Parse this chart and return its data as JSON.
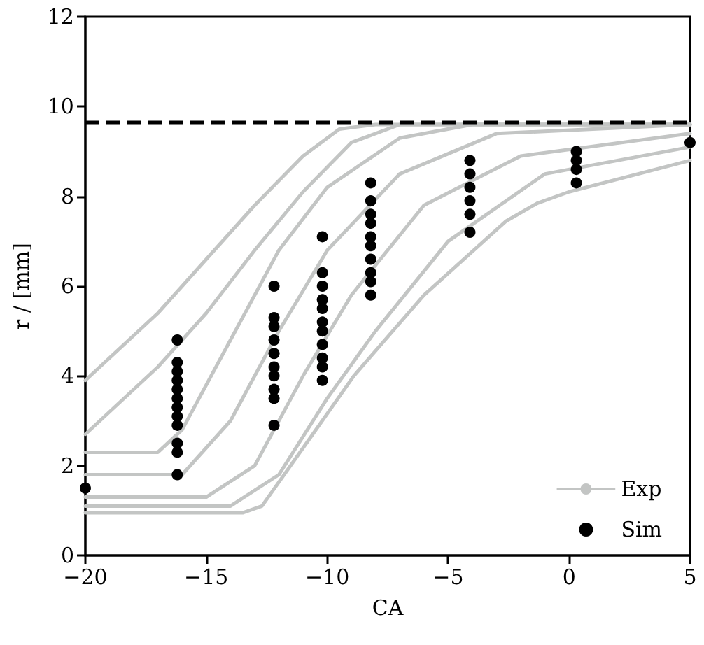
{
  "chart_data": {
    "type": "line",
    "xlabel": "CA",
    "ylabel": "r / [mm]",
    "xlim": [
      -20,
      5
    ],
    "ylim": [
      0,
      12
    ],
    "xticks": [
      {
        "value": -20,
        "label": "−20"
      },
      {
        "value": -15,
        "label": "−15"
      },
      {
        "value": -10,
        "label": "−10"
      },
      {
        "value": -5,
        "label": "−5"
      },
      0,
      5
    ],
    "yticks": [
      0,
      2,
      4,
      6,
      8,
      10,
      12
    ],
    "grid": false,
    "legend": "bottom right",
    "ref_lines": [
      {
        "axis": "y",
        "value": 9.65,
        "color": "#000000",
        "line_style": "dashed"
      }
    ],
    "series": [
      {
        "name": "Exp",
        "type": "line",
        "color": "#c3c5c4",
        "marker": "none",
        "x": [
          -20,
          -17,
          -15,
          -13,
          -11,
          -9.5,
          -8,
          5
        ],
        "values": [
          3.9,
          5.4,
          6.6,
          7.8,
          8.9,
          9.5,
          9.6,
          9.6
        ]
      },
      {
        "type": "line",
        "color": "#c3c5c4",
        "marker": "none",
        "x": [
          -20,
          -17,
          -15,
          -13,
          -11,
          -9,
          -7,
          5
        ],
        "values": [
          2.7,
          4.2,
          5.4,
          6.8,
          8.1,
          9.2,
          9.6,
          9.6
        ]
      },
      {
        "type": "line",
        "color": "#c3c5c4",
        "marker": "none",
        "x": [
          -20,
          -17,
          -16,
          -14,
          -12,
          -10,
          -7,
          -4,
          5
        ],
        "values": [
          2.3,
          2.3,
          2.8,
          4.8,
          6.8,
          8.2,
          9.3,
          9.6,
          9.6
        ]
      },
      {
        "type": "line",
        "color": "#c3c5c4",
        "marker": "none",
        "x": [
          -20,
          -16,
          -14,
          -12,
          -10,
          -7,
          -3,
          5
        ],
        "values": [
          1.8,
          1.8,
          3.0,
          5.0,
          6.8,
          8.5,
          9.4,
          9.6
        ]
      },
      {
        "type": "line",
        "color": "#c3c5c4",
        "marker": "none",
        "x": [
          -20,
          -15,
          -13,
          -11,
          -9,
          -6,
          -2,
          5
        ],
        "values": [
          1.3,
          1.3,
          2.0,
          4.0,
          5.8,
          7.8,
          8.9,
          9.4
        ]
      },
      {
        "type": "line",
        "color": "#c3c5c4",
        "marker": "none",
        "x": [
          -20,
          -14,
          -12,
          -10,
          -8,
          -5,
          -1,
          5
        ],
        "values": [
          1.1,
          1.1,
          1.8,
          3.5,
          5.0,
          7.0,
          8.5,
          9.1
        ]
      },
      {
        "type": "line",
        "color": "#c3c5c4",
        "marker": "none",
        "x": [
          -20,
          -13.5,
          -12.7,
          -10.6,
          -8.9,
          -6,
          -2.6,
          -1.3,
          0,
          5
        ],
        "values": [
          0.95,
          0.95,
          1.1,
          2.7,
          4.0,
          5.8,
          7.45,
          7.85,
          8.1,
          8.8
        ]
      },
      {
        "name": "Sim",
        "type": "scatter",
        "color": "#000000",
        "marker": "circle",
        "x": [
          -20,
          -16.2,
          -16.2,
          -16.2,
          -16.2,
          -16.2,
          -16.2,
          -16.2,
          -16.2,
          -16.2,
          -16.2,
          -16.2,
          -16.2,
          -12.2,
          -12.2,
          -12.2,
          -12.2,
          -12.2,
          -12.2,
          -12.2,
          -12.2,
          -12.2,
          -12.2,
          -10.2,
          -10.2,
          -10.2,
          -10.2,
          -10.2,
          -10.2,
          -10.2,
          -10.2,
          -10.2,
          -10.2,
          -10.2,
          -8.2,
          -8.2,
          -8.2,
          -8.2,
          -8.2,
          -8.2,
          -8.2,
          -8.2,
          -8.2,
          -8.2,
          -4.1,
          -4.1,
          -4.1,
          -4.1,
          -4.1,
          -4.1,
          0.3,
          0.3,
          0.3,
          0.3,
          5
        ],
        "values": [
          1.5,
          4.8,
          4.3,
          4.1,
          3.9,
          3.7,
          3.5,
          3.3,
          3.1,
          2.9,
          2.5,
          2.3,
          1.8,
          6.0,
          5.3,
          5.1,
          4.8,
          4.5,
          4.2,
          4.0,
          3.7,
          3.5,
          2.9,
          7.1,
          6.3,
          6.0,
          5.7,
          5.5,
          5.2,
          5.0,
          4.7,
          4.4,
          4.2,
          3.9,
          8.3,
          7.9,
          7.6,
          7.4,
          7.1,
          6.9,
          6.6,
          6.3,
          6.1,
          5.8,
          8.8,
          8.5,
          8.2,
          7.9,
          7.6,
          7.2,
          9.0,
          8.8,
          8.6,
          8.3,
          9.2
        ]
      }
    ]
  }
}
